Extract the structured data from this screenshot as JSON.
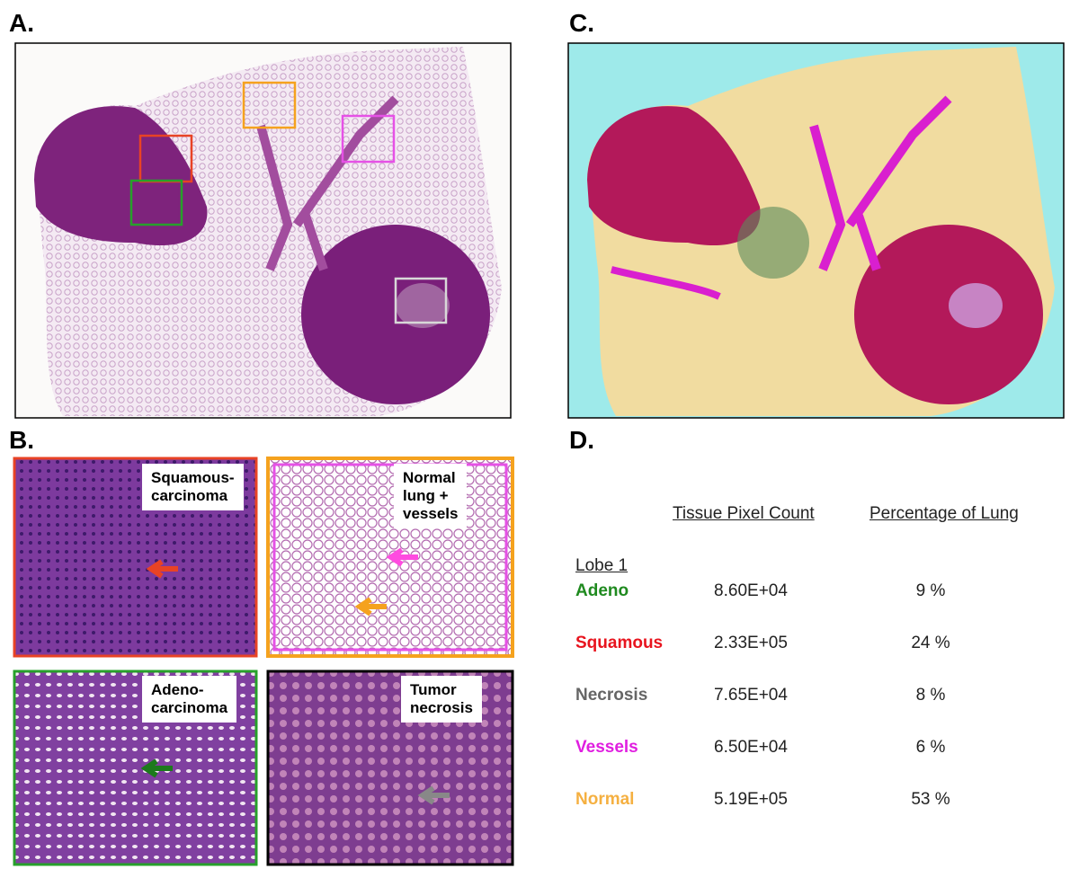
{
  "panels": {
    "a": "A.",
    "b": "B.",
    "c": "C.",
    "d": "D."
  },
  "insets": [
    {
      "lines": [
        "Squamous-",
        "carcinoma"
      ]
    },
    {
      "lines": [
        "Normal",
        "lung +",
        "vessels"
      ]
    },
    {
      "lines": [
        "Adeno-",
        "carcinoma"
      ]
    },
    {
      "lines": [
        "Tumor",
        "necrosis"
      ]
    }
  ],
  "table": {
    "headers": [
      "Tissue Pixel Count",
      "Percentage of Lung"
    ],
    "group": "Lobe 1",
    "rows": [
      [
        "Adeno",
        "8.60E+04",
        "9 %"
      ],
      [
        "Squamous",
        "2.33E+05",
        "24 %"
      ],
      [
        "Necrosis",
        "7.65E+04",
        "8 %"
      ],
      [
        "Vessels",
        "6.50E+04",
        "6 %"
      ],
      [
        "Normal",
        "5.19E+05",
        "53 %"
      ]
    ]
  }
}
